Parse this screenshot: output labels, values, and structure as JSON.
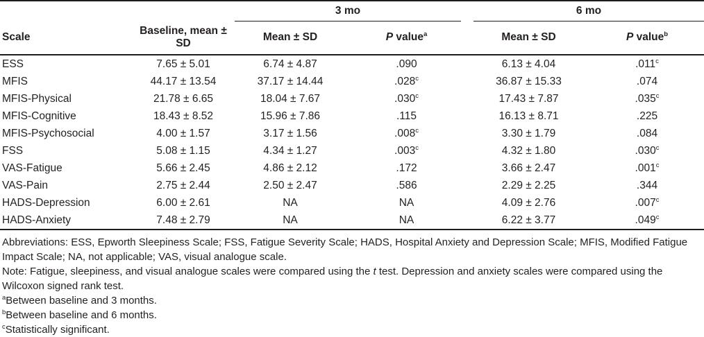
{
  "colors": {
    "text": "#231f20",
    "rule": "#1c1c1c",
    "background": "#ffffff"
  },
  "table": {
    "groups": [
      {
        "label": "3 mo"
      },
      {
        "label": "6 mo"
      }
    ],
    "headers": {
      "scale": "Scale",
      "baseline": "Baseline, mean ± SD",
      "mean_sd_3mo": "Mean ± SD",
      "mean_sd_6mo": "Mean ± SD",
      "p_italic": "P",
      "p_rest": " value",
      "p_sup_3mo": "a",
      "p_sup_6mo": "b"
    },
    "rows": [
      {
        "scale": "ESS",
        "baseline": "7.65 ± 5.01",
        "m3_mean": "6.74 ± 4.87",
        "m3_p": ".090",
        "m3_p_sup": "",
        "m6_mean": "6.13 ± 4.04",
        "m6_p": ".011",
        "m6_p_sup": "c"
      },
      {
        "scale": "MFIS",
        "baseline": "44.17 ± 13.54",
        "m3_mean": "37.17 ± 14.44",
        "m3_p": ".028",
        "m3_p_sup": "c",
        "m6_mean": "36.87 ± 15.33",
        "m6_p": ".074",
        "m6_p_sup": ""
      },
      {
        "scale": "MFIS-Physical",
        "baseline": "21.78 ± 6.65",
        "m3_mean": "18.04 ± 7.67",
        "m3_p": ".030",
        "m3_p_sup": "c",
        "m6_mean": "17.43 ± 7.87",
        "m6_p": ".035",
        "m6_p_sup": "c"
      },
      {
        "scale": "MFIS-Cognitive",
        "baseline": "18.43 ± 8.52",
        "m3_mean": "15.96 ± 7.86",
        "m3_p": ".115",
        "m3_p_sup": "",
        "m6_mean": "16.13 ± 8.71",
        "m6_p": ".225",
        "m6_p_sup": ""
      },
      {
        "scale": "MFIS-Psychosocial",
        "baseline": "4.00 ± 1.57",
        "m3_mean": "3.17 ± 1.56",
        "m3_p": ".008",
        "m3_p_sup": "c",
        "m6_mean": "3.30 ± 1.79",
        "m6_p": ".084",
        "m6_p_sup": ""
      },
      {
        "scale": "FSS",
        "baseline": "5.08 ± 1.15",
        "m3_mean": "4.34 ± 1.27",
        "m3_p": ".003",
        "m3_p_sup": "c",
        "m6_mean": "4.32 ± 1.80",
        "m6_p": ".030",
        "m6_p_sup": "c"
      },
      {
        "scale": "VAS-Fatigue",
        "baseline": "5.66 ± 2.45",
        "m3_mean": "4.86 ± 2.12",
        "m3_p": ".172",
        "m3_p_sup": "",
        "m6_mean": "3.66 ± 2.47",
        "m6_p": ".001",
        "m6_p_sup": "c"
      },
      {
        "scale": "VAS-Pain",
        "baseline": "2.75 ± 2.44",
        "m3_mean": "2.50 ± 2.47",
        "m3_p": ".586",
        "m3_p_sup": "",
        "m6_mean": "2.29 ± 2.25",
        "m6_p": ".344",
        "m6_p_sup": ""
      },
      {
        "scale": "HADS-Depression",
        "baseline": "6.00 ± 2.61",
        "m3_mean": "NA",
        "m3_p": "NA",
        "m3_p_sup": "",
        "m6_mean": "4.09 ± 2.76",
        "m6_p": ".007",
        "m6_p_sup": "c"
      },
      {
        "scale": "HADS-Anxiety",
        "baseline": "7.48 ± 2.79",
        "m3_mean": "NA",
        "m3_p": "NA",
        "m3_p_sup": "",
        "m6_mean": "6.22 ± 3.77",
        "m6_p": ".049",
        "m6_p_sup": "c"
      }
    ]
  },
  "footnotes": {
    "abbreviations": "Abbreviations: ESS, Epworth Sleepiness Scale; FSS, Fatigue Severity Scale; HADS, Hospital Anxiety and Depression Scale; MFIS, Modified Fatigue Impact Scale; NA, not applicable; VAS, visual analogue scale.",
    "note_pre": "Note: Fatigue, sleepiness, and visual analogue scales were compared using the ",
    "note_italic": "t",
    "note_post": " test. Depression and anxiety scales were compared using the Wilcoxon signed rank test.",
    "fn_a": {
      "sup": "a",
      "text": "Between baseline and 3 months."
    },
    "fn_b": {
      "sup": "b",
      "text": "Between baseline and 6 months."
    },
    "fn_c": {
      "sup": "c",
      "text": "Statistically significant."
    }
  }
}
